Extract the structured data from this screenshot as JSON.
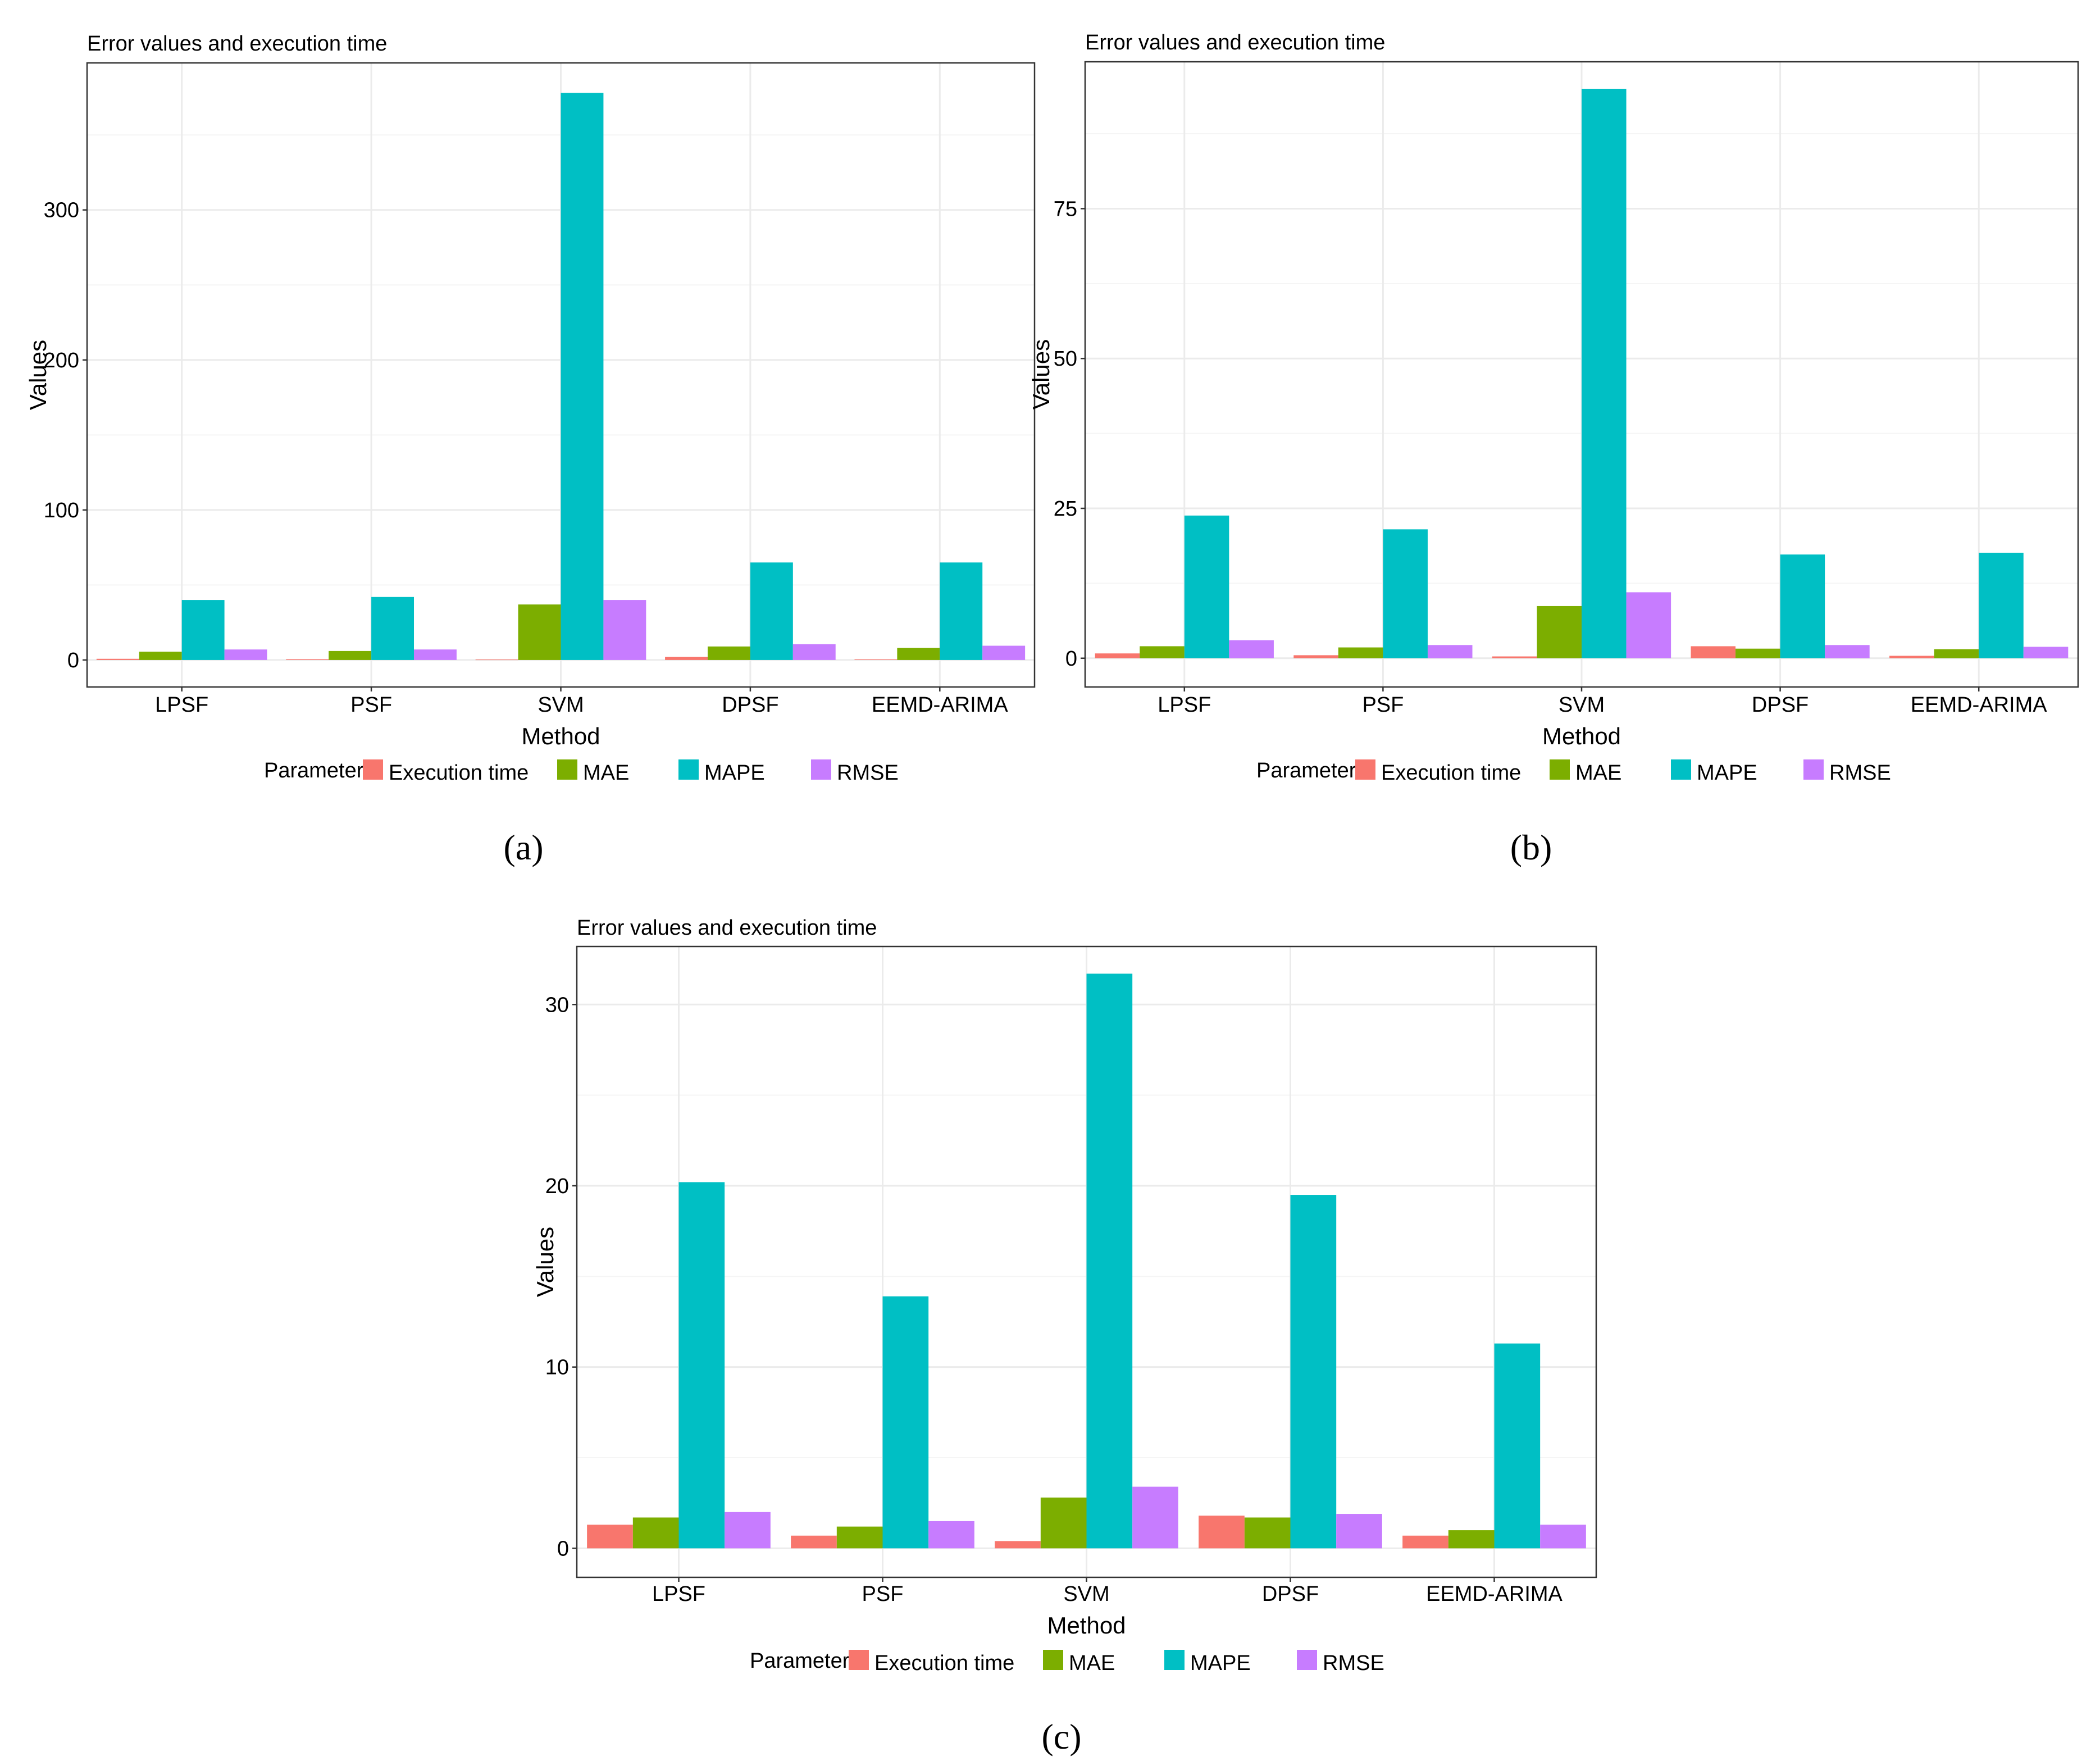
{
  "chart_data": [
    {
      "type": "bar",
      "panel": "a",
      "title": "Error values and execution time",
      "xlabel": "Method",
      "ylabel": "Values",
      "caption": "(a)",
      "categories": [
        "LPSF",
        "PSF",
        "SVM",
        "DPSF",
        "EEMD-ARIMA"
      ],
      "ylim": [
        -18,
        398
      ],
      "yticks": [
        0,
        100,
        200,
        300
      ],
      "legend_title": "Parameter",
      "legend_position": "bottom",
      "series": [
        {
          "name": "Execution time",
          "color": "#F8766D",
          "values": [
            0.8,
            0.5,
            0.3,
            2.0,
            0.4
          ]
        },
        {
          "name": "MAE",
          "color": "#7CAE00",
          "values": [
            5.5,
            6.0,
            37.0,
            9.0,
            8.0
          ]
        },
        {
          "name": "MAPE",
          "color": "#00BFC4",
          "values": [
            40.0,
            42.0,
            378.0,
            65.0,
            65.0
          ]
        },
        {
          "name": "RMSE",
          "color": "#C77CFF",
          "values": [
            7.0,
            7.0,
            40.0,
            10.5,
            9.5
          ]
        }
      ]
    },
    {
      "type": "bar",
      "panel": "b",
      "title": "Error values and execution time",
      "xlabel": "Method",
      "ylabel": "Values",
      "caption": "(b)",
      "categories": [
        "LPSF",
        "PSF",
        "SVM",
        "DPSF",
        "EEMD-ARIMA"
      ],
      "ylim": [
        -4.8,
        99.5
      ],
      "yticks": [
        0,
        25,
        50,
        75
      ],
      "legend_title": "Parameter",
      "legend_position": "bottom",
      "series": [
        {
          "name": "Execution time",
          "color": "#F8766D",
          "values": [
            0.8,
            0.5,
            0.3,
            2.0,
            0.4
          ]
        },
        {
          "name": "MAE",
          "color": "#7CAE00",
          "values": [
            2.0,
            1.8,
            8.7,
            1.6,
            1.5
          ]
        },
        {
          "name": "MAPE",
          "color": "#00BFC4",
          "values": [
            23.8,
            21.5,
            95.0,
            17.3,
            17.6
          ]
        },
        {
          "name": "RMSE",
          "color": "#C77CFF",
          "values": [
            3.0,
            2.2,
            11.0,
            2.2,
            1.9
          ]
        }
      ]
    },
    {
      "type": "bar",
      "panel": "c",
      "title": "Error values and execution time",
      "xlabel": "Method",
      "ylabel": "Values",
      "caption": "(c)",
      "categories": [
        "LPSF",
        "PSF",
        "SVM",
        "DPSF",
        "EEMD-ARIMA"
      ],
      "ylim": [
        -1.6,
        33.2
      ],
      "yticks": [
        0,
        10,
        20,
        30
      ],
      "legend_title": "Parameter",
      "legend_position": "bottom",
      "series": [
        {
          "name": "Execution time",
          "color": "#F8766D",
          "values": [
            1.3,
            0.7,
            0.4,
            1.8,
            0.7
          ]
        },
        {
          "name": "MAE",
          "color": "#7CAE00",
          "values": [
            1.7,
            1.2,
            2.8,
            1.7,
            1.0
          ]
        },
        {
          "name": "MAPE",
          "color": "#00BFC4",
          "values": [
            20.2,
            13.9,
            31.7,
            19.5,
            11.3
          ]
        },
        {
          "name": "RMSE",
          "color": "#C77CFF",
          "values": [
            2.0,
            1.5,
            3.4,
            1.9,
            1.3
          ]
        }
      ]
    }
  ]
}
